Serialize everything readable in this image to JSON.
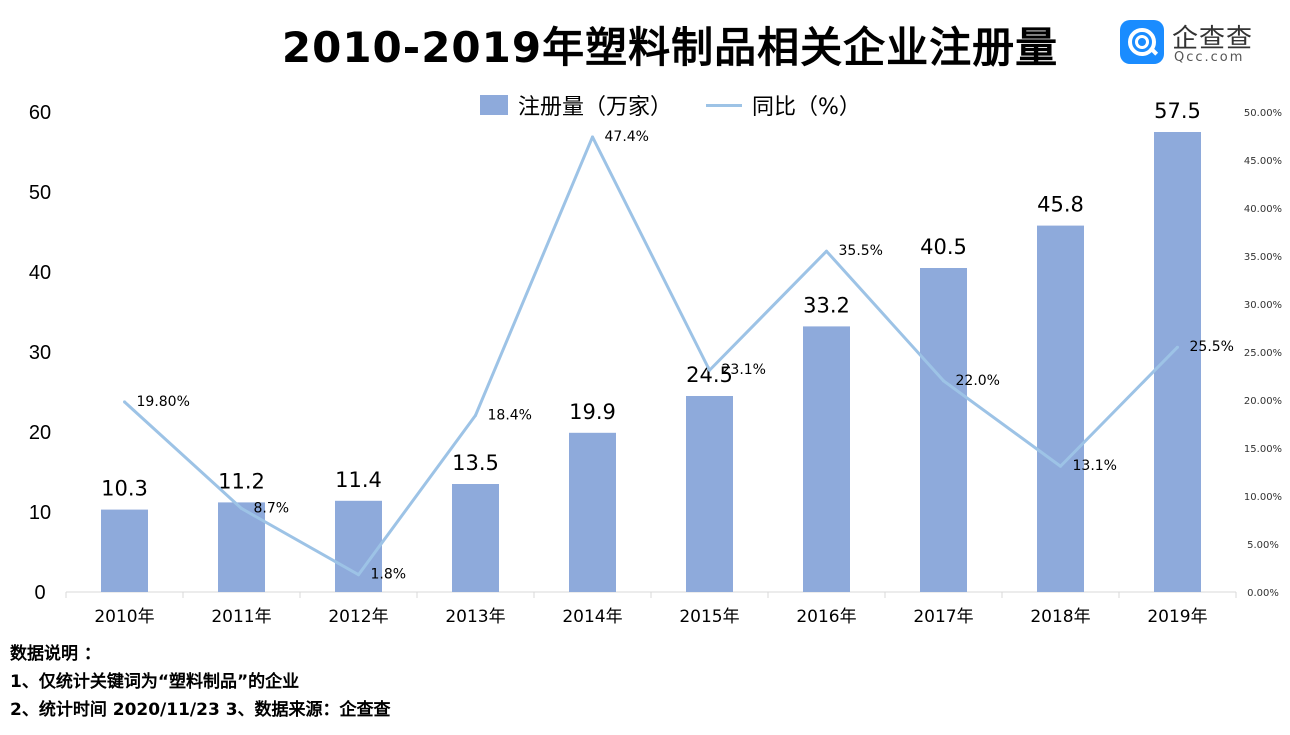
{
  "title": "2010-2019年塑料制品相关企业注册量",
  "logo": {
    "name": "企查查",
    "sub": "Qcc.com",
    "icon": "magnifier-icon"
  },
  "notes": {
    "heading": "数据说明 ：",
    "line1": "1、仅统计关键词为“塑料制品”的企业",
    "line2": "2、统计时间 2020/11/23  3、数据来源：企查查"
  },
  "colors": {
    "bar": "#8eaadb",
    "line": "#9dc3e6"
  },
  "chart_data": {
    "type": "bar",
    "categories": [
      "2010年",
      "2011年",
      "2012年",
      "2013年",
      "2014年",
      "2015年",
      "2016年",
      "2017年",
      "2018年",
      "2019年"
    ],
    "series": [
      {
        "name": "注册量（万家）",
        "type": "bar",
        "axis": "left",
        "values": [
          10.3,
          11.2,
          11.4,
          13.5,
          19.9,
          24.5,
          33.2,
          40.5,
          45.8,
          57.5
        ],
        "labels": [
          "10.3",
          "11.2",
          "11.4",
          "13.5",
          "19.9",
          "24.5",
          "33.2",
          "40.5",
          "45.8",
          "57.5"
        ]
      },
      {
        "name": "同比（%）",
        "type": "line",
        "axis": "right",
        "values": [
          19.8,
          8.7,
          1.8,
          18.4,
          47.4,
          23.1,
          35.5,
          22.0,
          13.1,
          25.5
        ],
        "labels": [
          "19.80%",
          "8.7%",
          "1.8%",
          "18.4%",
          "47.4%",
          "23.1%",
          "35.5%",
          "22.0%",
          "13.1%",
          "25.5%"
        ]
      }
    ],
    "y_left": {
      "range": [
        0,
        60
      ],
      "ticks": [
        "0",
        "10",
        "20",
        "30",
        "40",
        "50",
        "60"
      ]
    },
    "y_right": {
      "range": [
        0,
        50
      ],
      "ticks": [
        "0.00%",
        "5.00%",
        "10.00%",
        "15.00%",
        "20.00%",
        "25.00%",
        "30.00%",
        "35.00%",
        "40.00%",
        "45.00%",
        "50.00%"
      ]
    },
    "legend_position": "top",
    "grid": false
  }
}
